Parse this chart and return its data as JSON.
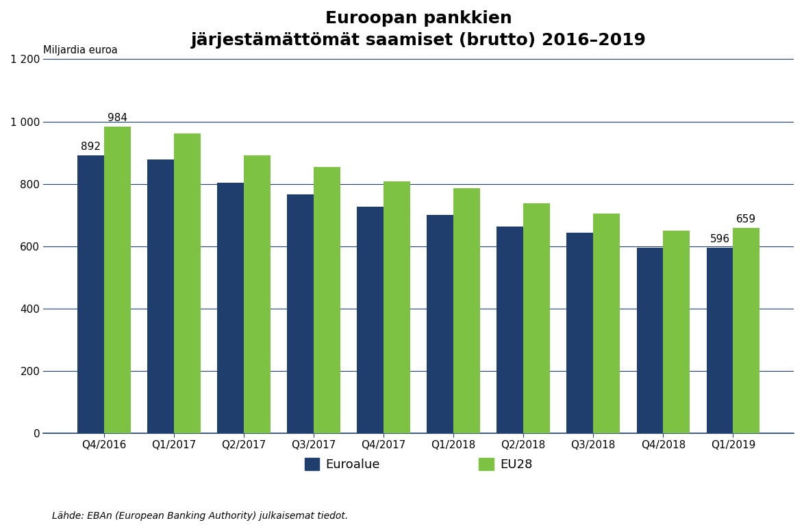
{
  "title": "Euroopan pankkien\njärjestämättömät saamiset (brutto) 2016–2019",
  "ylabel": "Miljardia euroa",
  "categories": [
    "Q4/2016",
    "Q1/2017",
    "Q2/2017",
    "Q3/2017",
    "Q4/2017",
    "Q1/2018",
    "Q2/2018",
    "Q3/2018",
    "Q4/2018",
    "Q1/2019"
  ],
  "euroalue": [
    892,
    878,
    803,
    766,
    727,
    701,
    663,
    644,
    596,
    596
  ],
  "eu28": [
    984,
    962,
    891,
    854,
    808,
    787,
    737,
    704,
    651,
    659
  ],
  "euroalue_color": "#1F3E6E",
  "eu28_color": "#7DC242",
  "annotate_first_euroalue": "892",
  "annotate_first_eu28": "984",
  "annotate_last_euroalue": "596",
  "annotate_last_eu28": "659",
  "ylim": [
    0,
    1200
  ],
  "yticks": [
    0,
    200,
    400,
    600,
    800,
    1000,
    1200
  ],
  "ytick_labels": [
    "0",
    "200",
    "400",
    "600",
    "800",
    "1 000",
    "1 200"
  ],
  "legend_euroalue": "Euroalue",
  "legend_eu28": "EU28",
  "source_text": "Lähde: EBAn (European Banking Authority) julkaisemat tiedot.",
  "background_color": "#FFFFFF",
  "grid_color": "#1F3E6E",
  "bar_width": 0.38,
  "title_fontsize": 18,
  "label_fontsize": 10.5,
  "tick_fontsize": 11,
  "annotation_fontsize": 11,
  "source_fontsize": 10,
  "legend_fontsize": 13
}
